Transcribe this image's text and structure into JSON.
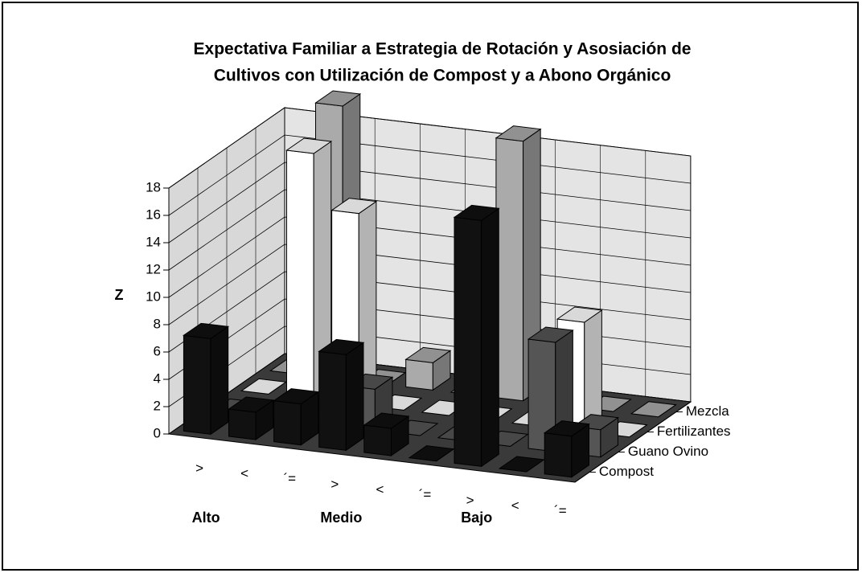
{
  "chart_data": {
    "type": "bar3d",
    "title": [
      "Expectativa Familiar a Estrategia de Rotación y Asosiación de",
      "Cultivos con Utilización de Compost y a Abono Orgánico"
    ],
    "zlabel": "Z",
    "categories": [
      ">",
      "<",
      "´=",
      ">",
      "<",
      "´=",
      ">",
      "<",
      "´="
    ],
    "groups": [
      "Alto",
      "Medio",
      "Bajo"
    ],
    "series": [
      {
        "name": "Compost",
        "color": "#111111",
        "values": [
          7,
          2,
          3,
          7,
          2,
          0,
          18,
          0,
          3
        ]
      },
      {
        "name": "Guano Ovino",
        "color": "#555555",
        "values": [
          0,
          0,
          0,
          3,
          0,
          0,
          0,
          8,
          2
        ]
      },
      {
        "name": "Fertilizantes",
        "color": "#ffffff",
        "values": [
          0,
          18,
          14,
          0,
          0,
          0,
          0,
          8,
          0
        ]
      },
      {
        "name": "Mezcla",
        "color": "#aaaaaa",
        "values": [
          0,
          20,
          0,
          2,
          0,
          19,
          0,
          0,
          0
        ]
      }
    ],
    "ylim": [
      0,
      18
    ],
    "yticks": [
      0,
      2,
      4,
      6,
      8,
      10,
      12,
      14,
      16,
      18
    ],
    "grid": true
  }
}
